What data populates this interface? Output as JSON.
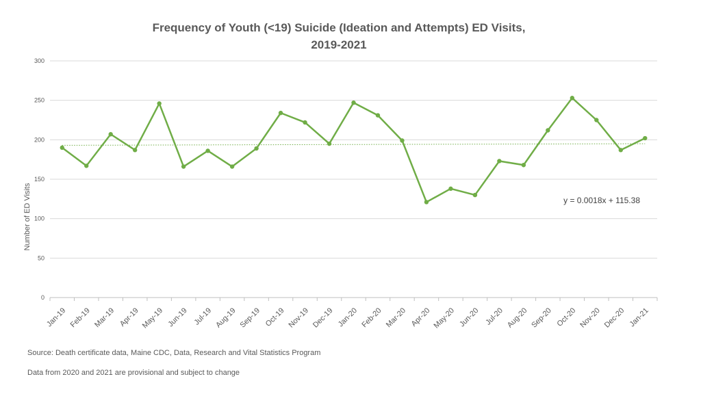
{
  "chart_data": {
    "type": "line",
    "title_line1": "Frequency of Youth (<19) Suicide (Ideation and Attempts)  ED Visits,",
    "title_line2": "2019-2021",
    "xlabel": "",
    "ylabel": "Number of ED Visits",
    "ylim": [
      0,
      300
    ],
    "yticks": [
      0,
      50,
      100,
      150,
      200,
      250,
      300
    ],
    "grid": true,
    "categories": [
      "Jan-19",
      "Feb-19",
      "Mar-19",
      "Apr-19",
      "May-19",
      "Jun-19",
      "Jul-19",
      "Aug-19",
      "Sep-19",
      "Oct-19",
      "Nov-19",
      "Dec-19",
      "Jan-20",
      "Feb-20",
      "Mar-20",
      "Apr-20",
      "May-20",
      "Jun-20",
      "Jul-20",
      "Aug-20",
      "Sep-20",
      "Oct-20",
      "Nov-20",
      "Dec-20",
      "Jan-21"
    ],
    "series": [
      {
        "values": [
          190,
          167,
          207,
          187,
          246,
          166,
          186,
          166,
          189,
          234,
          222,
          195,
          247,
          231,
          199,
          121,
          138,
          130,
          173,
          168,
          212,
          253,
          225,
          187,
          202
        ],
        "color": "#70ad47"
      }
    ],
    "trendline": {
      "equation": "y = 0.0018x + 115.38",
      "start": 193,
      "end": 195,
      "style": "dotted",
      "color": "#70ad47"
    }
  },
  "notes": {
    "source": "Source: Death certificate data, Maine CDC, Data, Research and Vital Statistics Program",
    "provisional": "Data from 2020 and 2021 are provisional and subject to change"
  }
}
